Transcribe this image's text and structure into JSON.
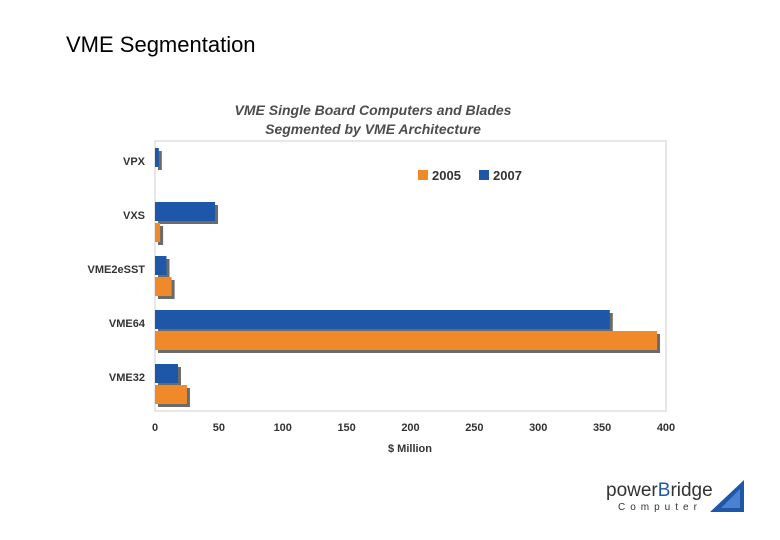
{
  "slide": {
    "title": "VME Segmentation"
  },
  "chart_data": {
    "type": "bar",
    "orientation": "horizontal",
    "title_lines": [
      "VME Single Board Computers and Blades",
      "Segmented by VME Architecture"
    ],
    "categories": [
      "VPX",
      "VXS",
      "VME2eSST",
      "VME64",
      "VME32"
    ],
    "series": [
      {
        "name": "2005",
        "color": "#f0892a",
        "values": [
          0,
          4,
          13,
          393,
          25
        ]
      },
      {
        "name": "2007",
        "color": "#1f57a8",
        "values": [
          3,
          47,
          9,
          356,
          18
        ]
      }
    ],
    "xlabel": "$ Million",
    "xlim": [
      0,
      400
    ],
    "xticks": [
      0,
      50,
      100,
      150,
      200,
      250,
      300,
      350,
      400
    ],
    "legend_position": "top-right",
    "grid": false
  },
  "logo": {
    "brand_prefix": "power",
    "brand_accent": "B",
    "brand_suffix": "ridge",
    "subtitle": "Computer"
  }
}
